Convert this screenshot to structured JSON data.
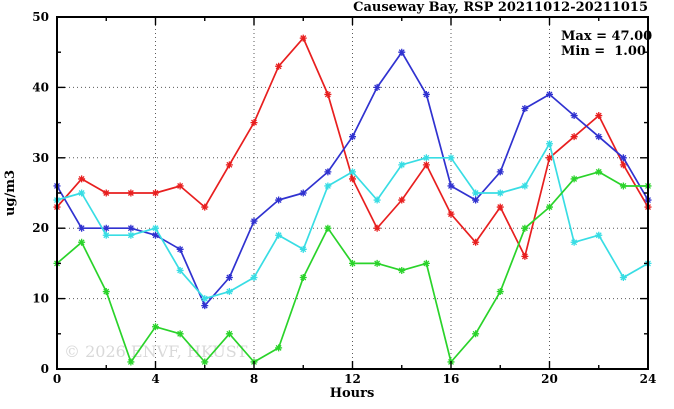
{
  "watermark": "© 2026 ENVF, HKUST",
  "chart_data": {
    "type": "line",
    "title": "Causeway Bay, RSP 20211012-20211015",
    "annotation_max": "Max = 47.00",
    "annotation_min": "Min =  1.00",
    "xlabel": "Hours",
    "ylabel": "ug/m3",
    "xlim": [
      0,
      24
    ],
    "ylim": [
      0,
      50
    ],
    "x_major_ticks": [
      0,
      4,
      8,
      12,
      16,
      20,
      24
    ],
    "x_minor_step": 2,
    "y_major_ticks": [
      0,
      10,
      20,
      30,
      40,
      50
    ],
    "y_minor_step": 5,
    "grid": {
      "x_lines": [
        4,
        8,
        12,
        16,
        20
      ],
      "y_lines": [
        10,
        20,
        30,
        40
      ],
      "style": "dotted"
    },
    "legend_position": "none",
    "marker": "asterisk",
    "x": [
      0,
      1,
      2,
      3,
      4,
      5,
      6,
      7,
      8,
      9,
      10,
      11,
      12,
      13,
      14,
      15,
      16,
      17,
      18,
      19,
      20,
      21,
      22,
      23,
      24
    ],
    "series": [
      {
        "name": "red",
        "color": "#e81f1f",
        "values": [
          23,
          27,
          25,
          25,
          25,
          26,
          23,
          29,
          35,
          43,
          47,
          39,
          27,
          20,
          24,
          29,
          22,
          18,
          23,
          16,
          30,
          33,
          36,
          29,
          23
        ]
      },
      {
        "name": "blue",
        "color": "#3032d0",
        "values": [
          26,
          20,
          20,
          20,
          19,
          17,
          9,
          13,
          21,
          24,
          25,
          28,
          33,
          40,
          45,
          39,
          26,
          24,
          28,
          37,
          39,
          36,
          33,
          30,
          24
        ]
      },
      {
        "name": "cyan",
        "color": "#38dde4",
        "values": [
          24,
          25,
          19,
          19,
          20,
          14,
          10,
          11,
          13,
          19,
          17,
          26,
          28,
          24,
          29,
          30,
          30,
          25,
          25,
          26,
          32,
          18,
          19,
          13,
          15
        ]
      },
      {
        "name": "green",
        "color": "#2ad32a",
        "values": [
          15,
          18,
          11,
          1,
          6,
          5,
          1,
          5,
          1,
          3,
          13,
          20,
          15,
          15,
          14,
          15,
          1,
          5,
          11,
          20,
          23,
          27,
          28,
          26,
          26
        ]
      }
    ]
  }
}
